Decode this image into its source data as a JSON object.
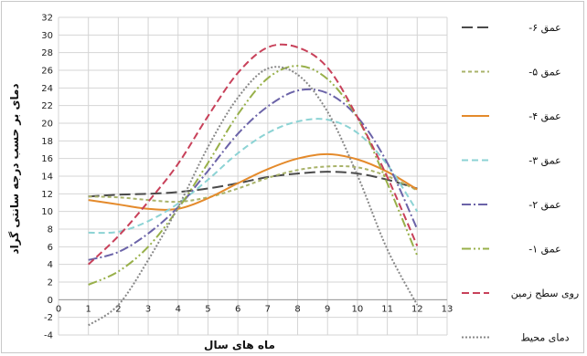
{
  "chart_data": {
    "type": "line",
    "title": "",
    "xlabel": "ماه های سال",
    "ylabel": "دمای بر حسب درجه سانتی گراد",
    "xlim": [
      0,
      13
    ],
    "ylim": [
      -4,
      32
    ],
    "xticks": [
      0,
      1,
      2,
      3,
      4,
      5,
      6,
      7,
      8,
      9,
      10,
      11,
      12,
      13
    ],
    "yticks": [
      -4,
      -2,
      0,
      2,
      4,
      6,
      8,
      10,
      12,
      14,
      16,
      18,
      20,
      22,
      24,
      26,
      28,
      30,
      32
    ],
    "grid": true,
    "legend_position": "right",
    "series": [
      {
        "name": "عمق ۶-",
        "color": "#4a4a4a",
        "dash": "12,5",
        "x": [
          1,
          2,
          3,
          4,
          5,
          6,
          7,
          8,
          9,
          10,
          11,
          12
        ],
        "y": [
          11.7,
          11.9,
          12.0,
          12.2,
          12.6,
          13.2,
          13.9,
          14.3,
          14.5,
          14.3,
          13.6,
          12.6
        ]
      },
      {
        "name": "عمق ۵-",
        "color": "#a9b36a",
        "dash": "4,3",
        "x": [
          1,
          2,
          3,
          4,
          5,
          6,
          7,
          8,
          9,
          10,
          11,
          12
        ],
        "y": [
          11.7,
          11.6,
          11.3,
          11.1,
          11.6,
          12.6,
          13.8,
          14.7,
          15.1,
          15.0,
          14.0,
          12.4
        ]
      },
      {
        "name": "عمق ۴-",
        "color": "#e48a2b",
        "dash": "",
        "x": [
          1,
          2,
          3,
          4,
          5,
          6,
          7,
          8,
          9,
          10,
          11,
          12
        ],
        "y": [
          11.3,
          10.8,
          10.3,
          10.3,
          11.5,
          13.2,
          14.8,
          16.0,
          16.5,
          15.9,
          14.5,
          12.5
        ]
      },
      {
        "name": "عمق ۳-",
        "color": "#8cd3d4",
        "dash": "7,4",
        "x": [
          1,
          2,
          3,
          4,
          5,
          6,
          7,
          8,
          9,
          10,
          11,
          12
        ],
        "y": [
          7.6,
          7.7,
          8.9,
          10.9,
          13.6,
          16.6,
          18.9,
          20.2,
          20.4,
          18.9,
          15.3,
          10.0
        ]
      },
      {
        "name": "عمق ۲-",
        "color": "#6b63a8",
        "dash": "10,3,2,3",
        "x": [
          1,
          2,
          3,
          4,
          5,
          6,
          7,
          8,
          9,
          10,
          11,
          12
        ],
        "y": [
          4.5,
          5.4,
          7.5,
          10.5,
          14.6,
          18.8,
          21.9,
          23.7,
          23.4,
          20.7,
          15.5,
          8.0
        ]
      },
      {
        "name": "عمق ۱-",
        "color": "#98b04a",
        "dash": "10,3,2,3,2,3",
        "x": [
          1,
          2,
          3,
          4,
          5,
          6,
          7,
          8,
          9,
          10,
          11,
          12
        ],
        "y": [
          1.7,
          3.2,
          6.0,
          10.3,
          15.5,
          21.0,
          25.1,
          26.5,
          25.0,
          20.6,
          13.2,
          5.0
        ]
      },
      {
        "name": "روی سطح زمین",
        "color": "#c8415a",
        "dash": "8,4",
        "x": [
          1,
          2,
          3,
          4,
          5,
          6,
          7,
          8,
          9,
          10,
          11,
          12
        ],
        "y": [
          4.0,
          7.2,
          11.1,
          15.4,
          20.8,
          25.7,
          28.6,
          28.6,
          26.3,
          20.7,
          13.9,
          6.1
        ]
      },
      {
        "name": "دمای محیط",
        "color": "#888888",
        "dash": "2,2",
        "x": [
          1,
          2,
          3,
          4,
          5,
          6,
          7,
          8,
          9,
          10,
          11,
          12
        ],
        "y": [
          -2.9,
          -0.6,
          4.5,
          10.5,
          17.3,
          22.9,
          26.2,
          25.5,
          21.3,
          14.1,
          5.7,
          -0.6
        ]
      }
    ]
  }
}
